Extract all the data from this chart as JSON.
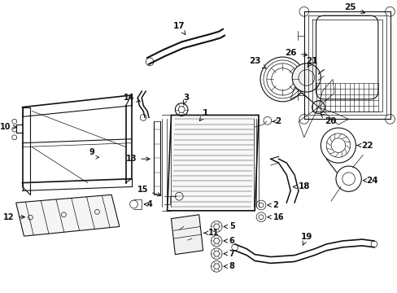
{
  "bg_color": "#ffffff",
  "line_color": "#111111",
  "fig_width": 4.89,
  "fig_height": 3.6,
  "dpi": 100
}
